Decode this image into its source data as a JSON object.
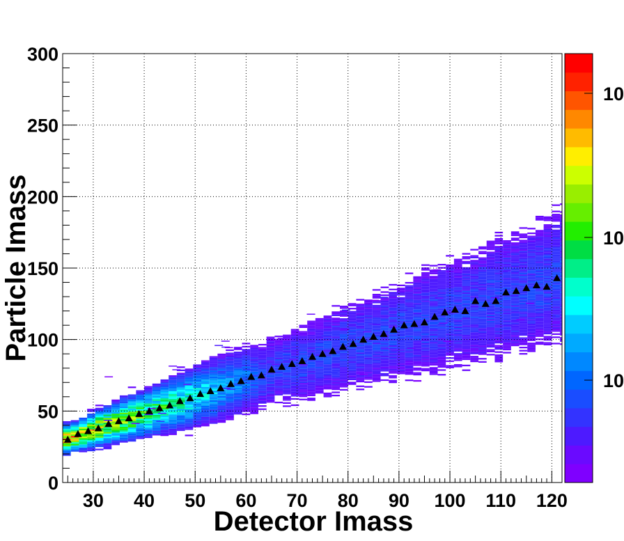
{
  "chart_data": {
    "type": "heatmap",
    "title": "",
    "xlabel": "Detector Imass",
    "ylabel": "Particle Imass",
    "xlim": [
      24,
      122
    ],
    "ylim": [
      0,
      300
    ],
    "x_ticks": [
      30,
      40,
      50,
      60,
      70,
      80,
      90,
      100,
      110,
      120
    ],
    "y_ticks": [
      0,
      50,
      100,
      150,
      200,
      250,
      300
    ],
    "grid": true,
    "z_scale": "log",
    "colorbar_labels": [
      "10",
      "10",
      "10"
    ],
    "colorbar_levels": 20,
    "palette": [
      "#7f00ff",
      "#6a0aff",
      "#4d1aff",
      "#3333ff",
      "#1a4dff",
      "#0066ff",
      "#0088ff",
      "#00aaff",
      "#00ccff",
      "#00ffff",
      "#00ffcc",
      "#00ee88",
      "#00dd44",
      "#22ee00",
      "#66ee00",
      "#99ee00",
      "#ccff00",
      "#ffee00",
      "#ffbb00",
      "#ff8800",
      "#ff5500",
      "#ff2200",
      "#ff0000"
    ],
    "profile_marker": "triangle",
    "profile_color": "#000000",
    "profile_points": [
      {
        "x": 25,
        "y": 30
      },
      {
        "x": 27,
        "y": 34
      },
      {
        "x": 29,
        "y": 36
      },
      {
        "x": 31,
        "y": 38
      },
      {
        "x": 33,
        "y": 41
      },
      {
        "x": 35,
        "y": 43
      },
      {
        "x": 37,
        "y": 45
      },
      {
        "x": 39,
        "y": 48
      },
      {
        "x": 41,
        "y": 50
      },
      {
        "x": 43,
        "y": 52
      },
      {
        "x": 45,
        "y": 54
      },
      {
        "x": 47,
        "y": 57
      },
      {
        "x": 49,
        "y": 59
      },
      {
        "x": 51,
        "y": 62
      },
      {
        "x": 53,
        "y": 64
      },
      {
        "x": 55,
        "y": 66
      },
      {
        "x": 57,
        "y": 69
      },
      {
        "x": 59,
        "y": 71
      },
      {
        "x": 61,
        "y": 74
      },
      {
        "x": 63,
        "y": 75
      },
      {
        "x": 65,
        "y": 79
      },
      {
        "x": 67,
        "y": 81
      },
      {
        "x": 69,
        "y": 83
      },
      {
        "x": 71,
        "y": 85
      },
      {
        "x": 73,
        "y": 88
      },
      {
        "x": 75,
        "y": 90
      },
      {
        "x": 77,
        "y": 92
      },
      {
        "x": 79,
        "y": 95
      },
      {
        "x": 81,
        "y": 97
      },
      {
        "x": 83,
        "y": 100
      },
      {
        "x": 85,
        "y": 102
      },
      {
        "x": 87,
        "y": 104
      },
      {
        "x": 89,
        "y": 107
      },
      {
        "x": 91,
        "y": 110
      },
      {
        "x": 93,
        "y": 111
      },
      {
        "x": 95,
        "y": 112
      },
      {
        "x": 97,
        "y": 116
      },
      {
        "x": 99,
        "y": 119
      },
      {
        "x": 101,
        "y": 121
      },
      {
        "x": 103,
        "y": 120
      },
      {
        "x": 105,
        "y": 127
      },
      {
        "x": 107,
        "y": 125
      },
      {
        "x": 109,
        "y": 127
      },
      {
        "x": 111,
        "y": 133
      },
      {
        "x": 113,
        "y": 134
      },
      {
        "x": 115,
        "y": 136
      },
      {
        "x": 117,
        "y": 138
      },
      {
        "x": 119,
        "y": 137
      },
      {
        "x": 121,
        "y": 143
      }
    ]
  }
}
